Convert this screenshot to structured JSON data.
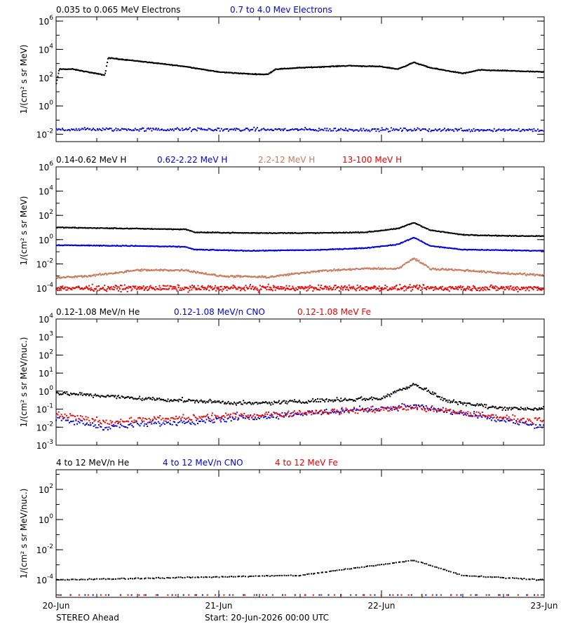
{
  "colors": {
    "black": "#000000",
    "blue": "#0000dd",
    "brown": "#c87a5e",
    "red": "#ee0000"
  },
  "x_axis": {
    "tick_labels": [
      "20-Jun",
      "21-Jun",
      "22-Jun",
      "23-Jun"
    ],
    "range_days": [
      0,
      3
    ]
  },
  "footer": {
    "spacecraft": "STEREO Ahead",
    "start": "Start: 20-Jun-2026 00:00 UTC"
  },
  "chart_data": [
    {
      "type": "scatter",
      "ylabel": "1/(cm² s sr MeV)",
      "log_y": true,
      "ylim": [
        0.003,
        2000000
      ],
      "yticks": [
        {
          "v": 1000000.0,
          "m": "10",
          "e": "6"
        },
        {
          "v": 10000.0,
          "m": "10",
          "e": "4"
        },
        {
          "v": 100.0,
          "m": "10",
          "e": "2"
        },
        {
          "v": 1,
          "m": "10",
          "e": "0"
        },
        {
          "v": 0.01,
          "m": "10",
          "e": "-2"
        }
      ],
      "series": [
        {
          "name": "0.035 to 0.065 MeV Electrons",
          "color": "black",
          "points": [
            [
              0,
              30
            ],
            [
              0.02,
              400
            ],
            [
              0.1,
              400
            ],
            [
              0.3,
              150
            ],
            [
              0.32,
              2500
            ],
            [
              0.5,
              1500
            ],
            [
              0.8,
              600
            ],
            [
              1,
              250
            ],
            [
              1.2,
              180
            ],
            [
              1.3,
              170
            ],
            [
              1.35,
              400
            ],
            [
              1.5,
              500
            ],
            [
              1.8,
              700
            ],
            [
              2.0,
              600
            ],
            [
              2.1,
              400
            ],
            [
              2.2,
              1200
            ],
            [
              2.3,
              500
            ],
            [
              2.5,
              200
            ],
            [
              2.55,
              250
            ],
            [
              2.6,
              350
            ],
            [
              2.8,
              300
            ],
            [
              3.0,
              250
            ]
          ]
        },
        {
          "name": "0.7 to 4.0 Mev Electrons",
          "color": "blue",
          "points": [
            [
              0,
              0.022
            ],
            [
              3,
              0.02
            ]
          ]
        }
      ]
    },
    {
      "type": "scatter",
      "ylabel": "1/(cm² s sr MeV)",
      "log_y": true,
      "ylim": [
        3e-05,
        1000000
      ],
      "yticks": [
        {
          "v": 1000000.0,
          "m": "10",
          "e": "6"
        },
        {
          "v": 10000.0,
          "m": "10",
          "e": "4"
        },
        {
          "v": 100.0,
          "m": "10",
          "e": "2"
        },
        {
          "v": 1,
          "m": "10",
          "e": "0"
        },
        {
          "v": 0.01,
          "m": "10",
          "e": "-2"
        },
        {
          "v": 0.0001,
          "m": "10",
          "e": "-4"
        }
      ],
      "series": [
        {
          "name": "0.14-0.62 MeV H",
          "color": "black",
          "points": [
            [
              0,
              10
            ],
            [
              0.5,
              8
            ],
            [
              0.8,
              7
            ],
            [
              0.85,
              4
            ],
            [
              1.2,
              3.5
            ],
            [
              1.6,
              3.5
            ],
            [
              1.9,
              4
            ],
            [
              2.1,
              8
            ],
            [
              2.2,
              25
            ],
            [
              2.3,
              6
            ],
            [
              2.5,
              2.5
            ],
            [
              2.8,
              2
            ],
            [
              3,
              2
            ]
          ]
        },
        {
          "name": "0.62-2.22 MeV H",
          "color": "blue",
          "points": [
            [
              0,
              0.35
            ],
            [
              0.5,
              0.3
            ],
            [
              0.8,
              0.25
            ],
            [
              0.85,
              0.15
            ],
            [
              1.2,
              0.12
            ],
            [
              1.6,
              0.14
            ],
            [
              1.9,
              0.2
            ],
            [
              2.1,
              0.4
            ],
            [
              2.2,
              1.5
            ],
            [
              2.3,
              0.3
            ],
            [
              2.5,
              0.15
            ],
            [
              3,
              0.12
            ]
          ]
        },
        {
          "name": "2.2-12 MeV H",
          "color": "brown",
          "points": [
            [
              0,
              0.0007
            ],
            [
              0.2,
              0.001
            ],
            [
              0.5,
              0.003
            ],
            [
              0.8,
              0.003
            ],
            [
              1.0,
              0.001
            ],
            [
              1.3,
              0.0008
            ],
            [
              1.6,
              0.0025
            ],
            [
              1.9,
              0.004
            ],
            [
              2.1,
              0.004
            ],
            [
              2.2,
              0.03
            ],
            [
              2.3,
              0.004
            ],
            [
              2.5,
              0.003
            ],
            [
              2.8,
              0.0015
            ],
            [
              3,
              0.0012
            ]
          ]
        },
        {
          "name": "13-100 MeV H",
          "color": "red",
          "points": [
            [
              0,
              0.0001
            ],
            [
              3,
              0.0001
            ]
          ]
        }
      ]
    },
    {
      "type": "scatter",
      "ylabel": "1/(cm² s sr MeV/nuc.)",
      "log_y": true,
      "ylim": [
        0.001,
        10000
      ],
      "yticks": [
        {
          "v": 10000.0,
          "m": "10",
          "e": "4"
        },
        {
          "v": 1000.0,
          "m": "10",
          "e": "3"
        },
        {
          "v": 100.0,
          "m": "10",
          "e": "2"
        },
        {
          "v": 10,
          "m": "10",
          "e": "1"
        },
        {
          "v": 1,
          "m": "10",
          "e": "0"
        },
        {
          "v": 0.1,
          "m": "10",
          "e": "-1"
        },
        {
          "v": 0.01,
          "m": "10",
          "e": "-2"
        },
        {
          "v": 0.001,
          "m": "10",
          "e": "-3"
        }
      ],
      "series": [
        {
          "name": "0.12-1.08 MeV/n He",
          "color": "black",
          "points": [
            [
              0,
              0.8
            ],
            [
              0.5,
              0.4
            ],
            [
              0.8,
              0.3
            ],
            [
              1.2,
              0.2
            ],
            [
              1.6,
              0.3
            ],
            [
              2.0,
              0.4
            ],
            [
              2.2,
              2.5
            ],
            [
              2.4,
              0.3
            ],
            [
              2.7,
              0.12
            ],
            [
              3,
              0.1
            ]
          ]
        },
        {
          "name": "0.12-1.08 MeV/n CNO",
          "color": "blue",
          "points": [
            [
              0,
              0.03
            ],
            [
              0.3,
              0.01
            ],
            [
              2.2,
              0.15
            ],
            [
              3,
              0.01
            ]
          ]
        },
        {
          "name": "0.12-1.08 MeV Fe",
          "color": "red",
          "points": [
            [
              0,
              0.05
            ],
            [
              0.3,
              0.02
            ],
            [
              2.2,
              0.12
            ],
            [
              3,
              0.02
            ]
          ]
        }
      ]
    },
    {
      "type": "scatter",
      "ylabel": "1/(cm² s sr MeV/nuc.)",
      "log_y": true,
      "ylim": [
        7e-06,
        2000
      ],
      "yticks": [
        {
          "v": 100,
          "m": "10",
          "e": "2"
        },
        {
          "v": 1,
          "m": "10",
          "e": "0"
        },
        {
          "v": 0.01,
          "m": "10",
          "e": "-2"
        },
        {
          "v": 0.0001,
          "m": "10",
          "e": "-4"
        }
      ],
      "series": [
        {
          "name": "4 to 12 MeV/n He",
          "color": "black",
          "points": [
            [
              0,
              0.0001
            ],
            [
              1.5,
              0.0002
            ],
            [
              2.2,
              0.002
            ],
            [
              2.5,
              0.0002
            ],
            [
              3,
              0.0001
            ]
          ]
        },
        {
          "name": "4 to 12 MeV/n CNO",
          "color": "blue",
          "points": [
            [
              0,
              1e-05
            ],
            [
              3,
              1e-05
            ]
          ]
        },
        {
          "name": "4 to 12 MeV Fe",
          "color": "red",
          "points": [
            [
              0,
              1e-05
            ],
            [
              3,
              1e-05
            ]
          ]
        }
      ]
    }
  ]
}
